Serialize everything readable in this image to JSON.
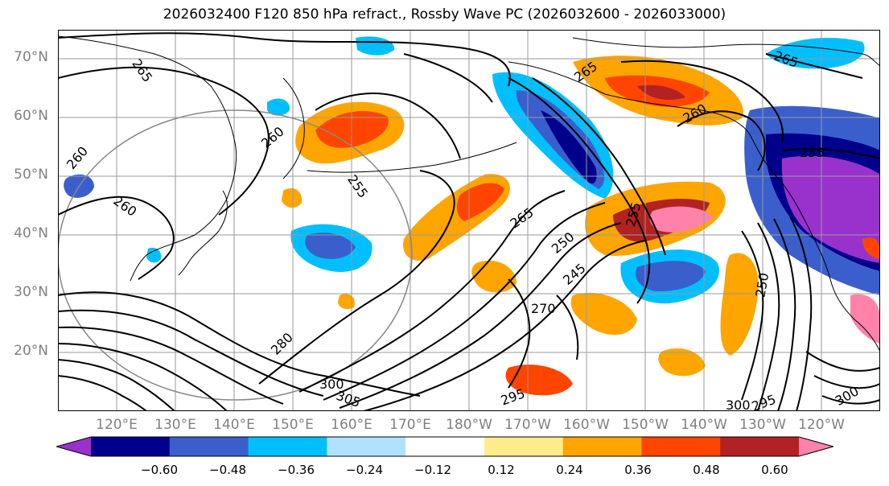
{
  "title": "2026032400 F120 850 hPa refract., Rossby Wave PC (2026032600 - 2026033000)",
  "lat_labels": [
    "70°N",
    "60°N",
    "50°N",
    "40°N",
    "30°N",
    "20°N"
  ],
  "lon_labels": [
    "120°E",
    "130°E",
    "140°E",
    "150°E",
    "160°E",
    "170°E",
    "180°W",
    "170°W",
    "160°W",
    "150°W",
    "140°W",
    "130°W",
    "120°W"
  ],
  "colorbar": {
    "ticks": [
      "−0.60",
      "−0.48",
      "−0.36",
      "−0.24",
      "−0.12",
      "0.12",
      "0.24",
      "0.36",
      "0.48",
      "0.60"
    ],
    "colors": [
      "#9932cc",
      "#00008b",
      "#3a5fcd",
      "#00bfff",
      "#b0e2ff",
      "#ffffff",
      "#ffec8b",
      "#ffa500",
      "#ff4500",
      "#b22222",
      "#ff82ab"
    ]
  },
  "contour_labels": [
    "265",
    "260",
    "260",
    "260",
    "255",
    "265",
    "250",
    "245",
    "255",
    "260",
    "265",
    "265",
    "255",
    "270",
    "280",
    "300",
    "305",
    "295",
    "300",
    "295",
    "300",
    "250"
  ]
}
